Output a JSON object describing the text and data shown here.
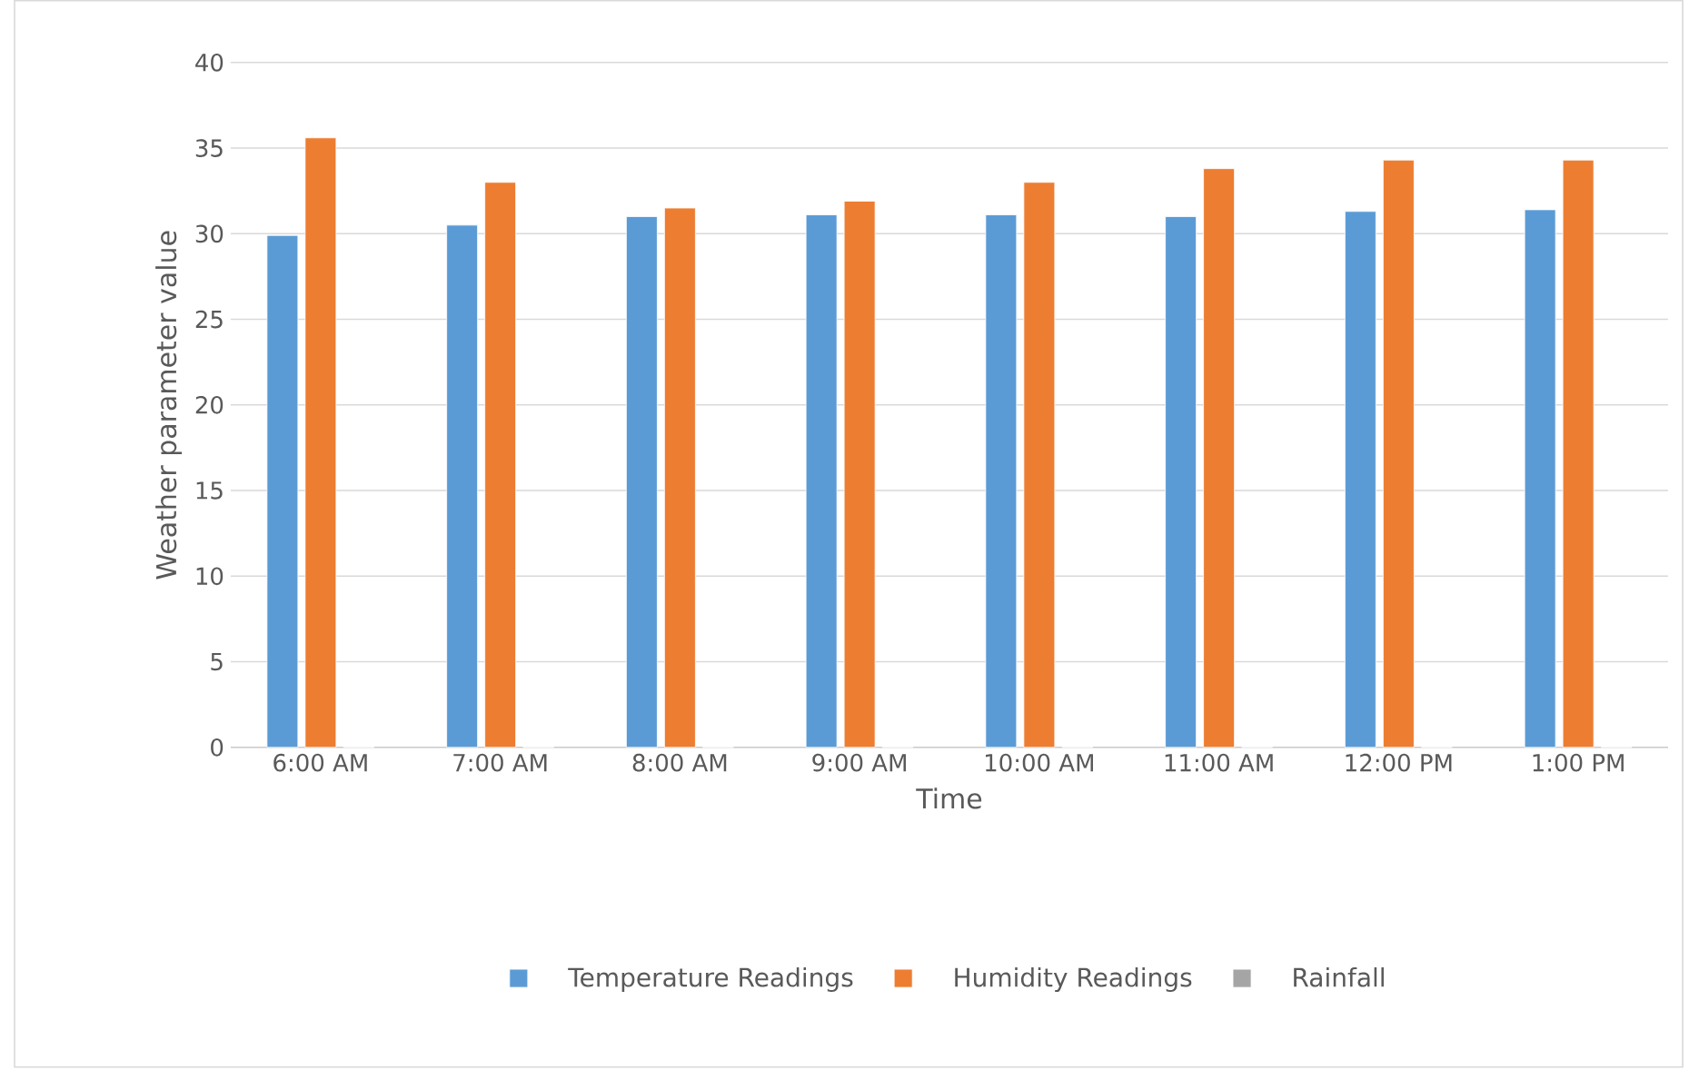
{
  "chart_data": {
    "type": "bar",
    "xlabel": "Time",
    "ylabel": "Weather parameter value",
    "categories": [
      "6:00 AM",
      "7:00 AM",
      "8:00 AM",
      "9:00 AM",
      "10:00 AM",
      "11:00 AM",
      "12:00 PM",
      "1:00 PM"
    ],
    "series": [
      {
        "name": "Temperature Readings",
        "color": "#5b9bd5",
        "values": [
          29.9,
          30.5,
          31.0,
          31.1,
          31.1,
          31.0,
          31.3,
          31.4
        ]
      },
      {
        "name": "Humidity Readings",
        "color": "#ed7d31",
        "values": [
          35.6,
          33.0,
          31.5,
          31.9,
          33.0,
          33.8,
          34.3,
          34.3
        ]
      },
      {
        "name": "Rainfall",
        "color": "#a5a5a5",
        "values": [
          0,
          0,
          0,
          0,
          0,
          0,
          0,
          0
        ]
      }
    ],
    "ylim": [
      0,
      40
    ],
    "yticks": [
      0,
      5,
      10,
      15,
      20,
      25,
      30,
      35,
      40
    ],
    "grid": "y",
    "legend": "bottom"
  }
}
